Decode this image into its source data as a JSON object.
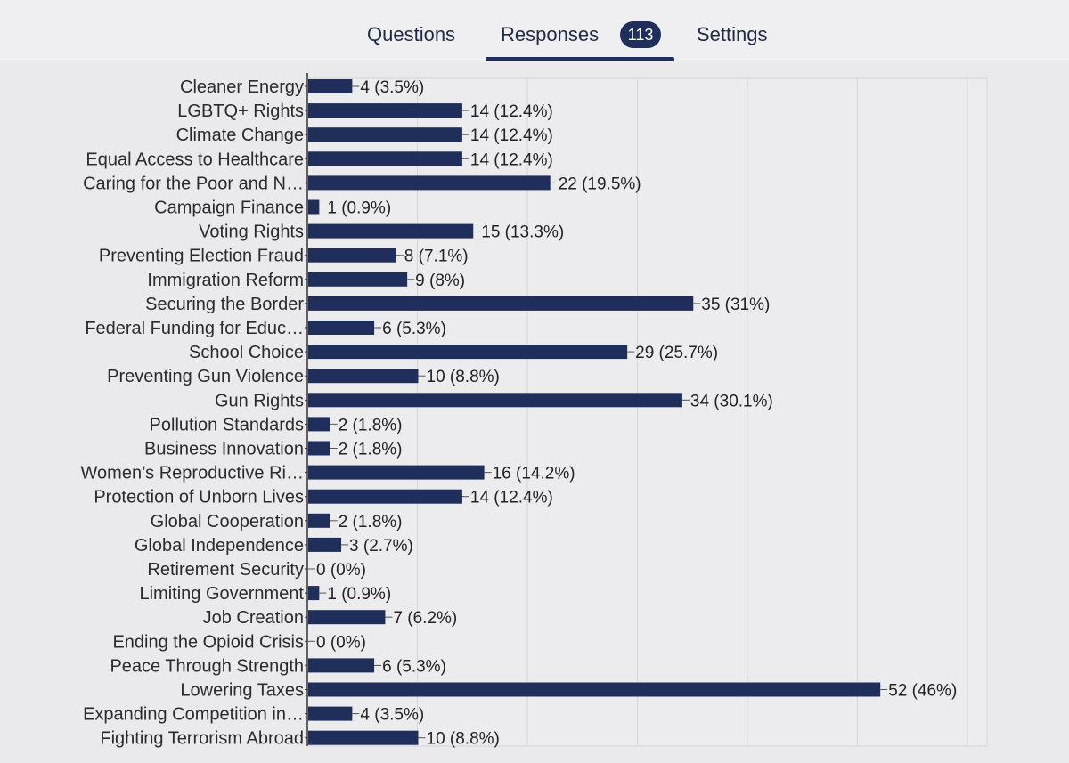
{
  "tabs": {
    "questions": "Questions",
    "responses": "Responses",
    "responses_count": "113",
    "settings": "Settings"
  },
  "colors": {
    "bar": "#1f2e5a",
    "accent": "#1f2e5a"
  },
  "chart_data": {
    "type": "bar",
    "orientation": "horizontal",
    "categories": [
      "Cleaner Energy",
      "LGBTQ+ Rights",
      "Climate Change",
      "Equal Access to Healthcare",
      "Caring for the Poor and N…",
      "Campaign Finance",
      "Voting Rights",
      "Preventing Election Fraud",
      "Immigration Reform",
      "Securing the Border",
      "Federal Funding for Educ…",
      "School Choice",
      "Preventing Gun Violence",
      "Gun Rights",
      "Pollution Standards",
      "Business Innovation",
      "Women’s Reproductive Ri…",
      "Protection of Unborn Lives",
      "Global Cooperation",
      "Global Independence",
      "Retirement Security",
      "Limiting Government",
      "Job Creation",
      "Ending the Opioid Crisis",
      "Peace Through Strength",
      "Lowering Taxes",
      "Expanding Competition in…",
      "Fighting Terrorism Abroad"
    ],
    "values": [
      4,
      14,
      14,
      14,
      22,
      1,
      15,
      8,
      9,
      35,
      6,
      29,
      10,
      34,
      2,
      2,
      16,
      14,
      2,
      3,
      0,
      1,
      7,
      0,
      6,
      52,
      4,
      10
    ],
    "data_labels": [
      "4 (3.5%)",
      "14 (12.4%)",
      "14 (12.4%)",
      "14 (12.4%)",
      "22 (19.5%)",
      "1 (0.9%)",
      "15 (13.3%)",
      "8 (7.1%)",
      "9 (8%)",
      "35 (31%)",
      "6 (5.3%)",
      "29 (25.7%)",
      "10 (8.8%)",
      "34 (30.1%)",
      "2 (1.8%)",
      "2 (1.8%)",
      "16 (14.2%)",
      "14 (12.4%)",
      "2 (1.8%)",
      "3 (2.7%)",
      "0 (0%)",
      "1 (0.9%)",
      "7 (6.2%)",
      "0 (0%)",
      "6 (5.3%)",
      "52 (46%)",
      "4 (3.5%)",
      "10 (8.8%)"
    ],
    "xlim": [
      0,
      60
    ],
    "grid": true
  }
}
